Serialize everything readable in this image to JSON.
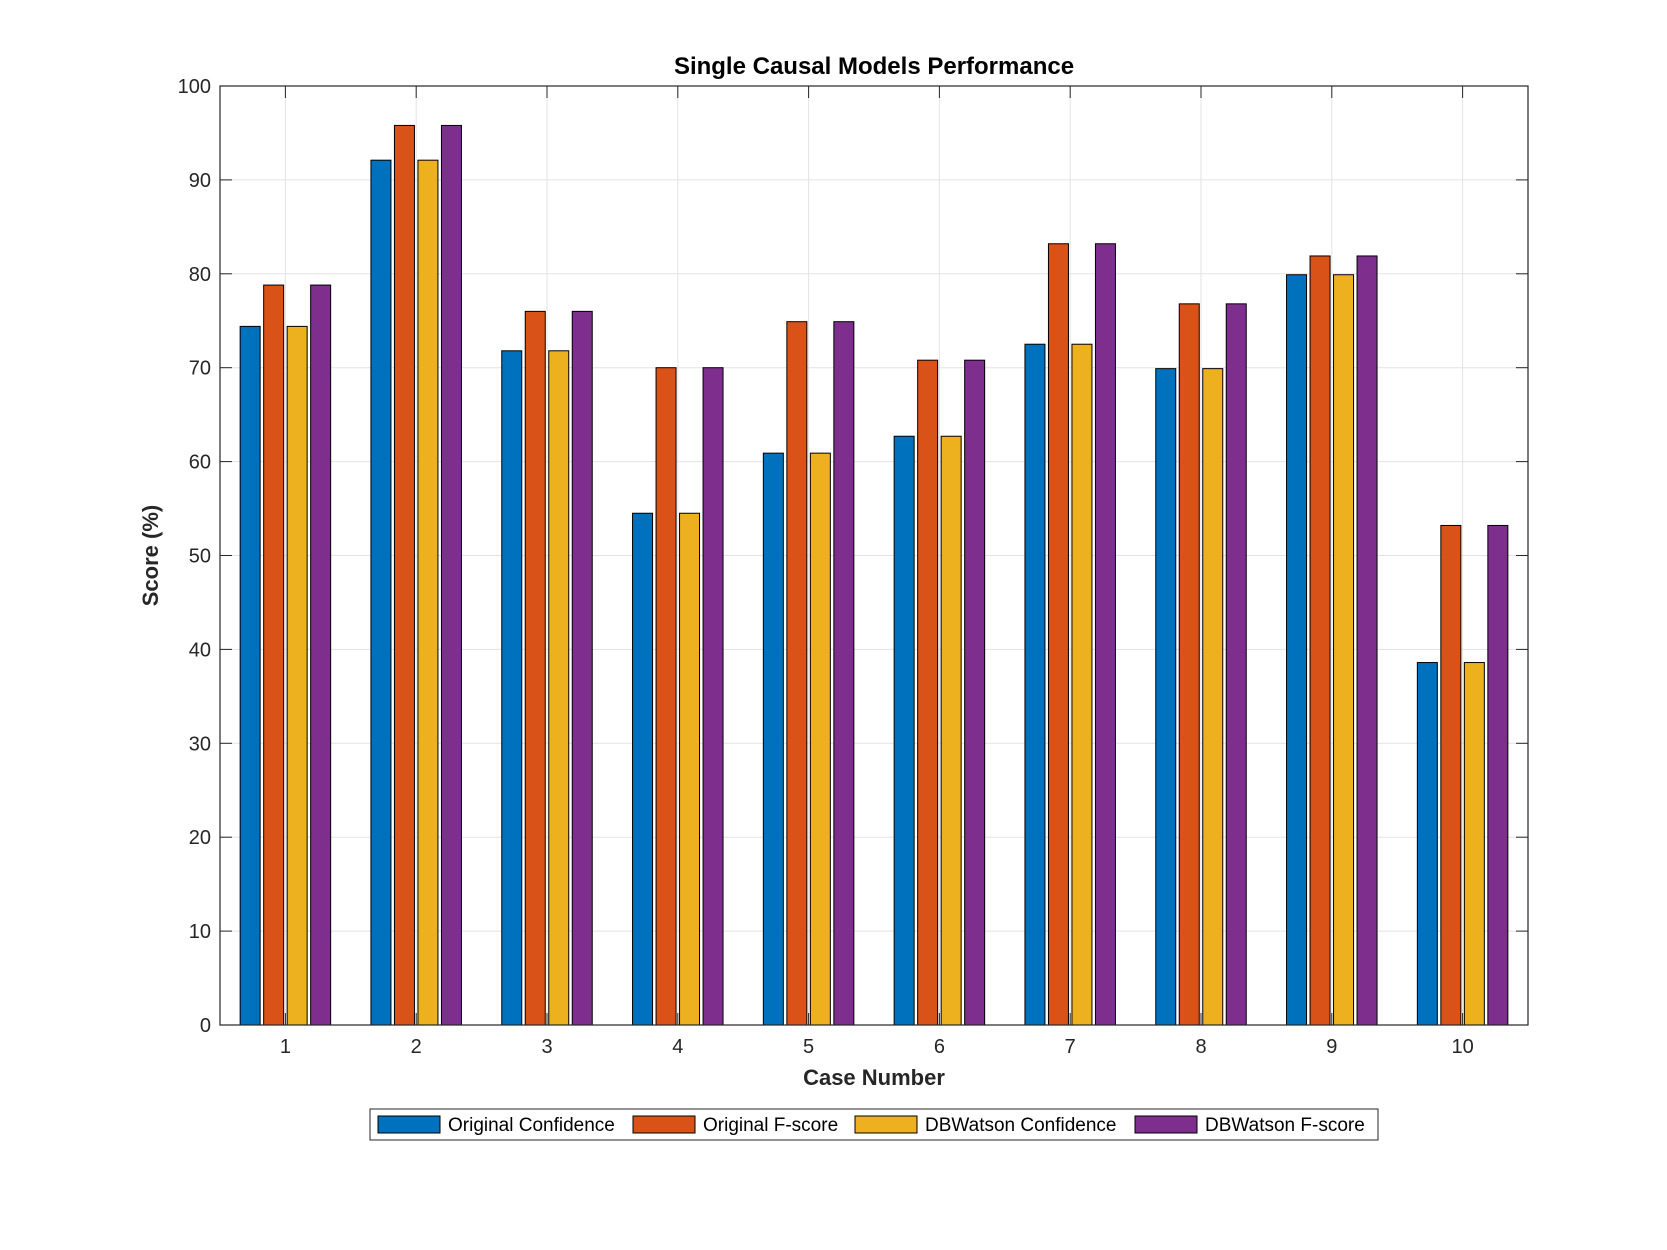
{
  "chart_data": {
    "type": "bar",
    "title": "Single Causal Models Performance",
    "xlabel": "Case Number",
    "ylabel": "Score (%)",
    "ylim": [
      0,
      100
    ],
    "yticks": [
      0,
      10,
      20,
      30,
      40,
      50,
      60,
      70,
      80,
      90,
      100
    ],
    "grid": true,
    "legend_position": "bottom-center",
    "categories": [
      "1",
      "2",
      "3",
      "4",
      "5",
      "6",
      "7",
      "8",
      "9",
      "10"
    ],
    "series": [
      {
        "name": "Original Confidence",
        "color": "#0072BD",
        "values": [
          74.4,
          92.1,
          71.8,
          54.5,
          60.9,
          62.7,
          72.5,
          69.9,
          79.9,
          38.6
        ]
      },
      {
        "name": "Original F-score",
        "color": "#D95319",
        "values": [
          78.8,
          95.8,
          76.0,
          70.0,
          74.9,
          70.8,
          83.2,
          76.8,
          81.9,
          53.2
        ]
      },
      {
        "name": "DBWatson Confidence",
        "color": "#EDB120",
        "values": [
          74.4,
          92.1,
          71.8,
          54.5,
          60.9,
          62.7,
          72.5,
          69.9,
          79.9,
          38.6
        ]
      },
      {
        "name": "DBWatson F-score",
        "color": "#7E2F8E",
        "values": [
          78.8,
          95.8,
          76.0,
          70.0,
          74.9,
          70.8,
          83.2,
          76.8,
          81.9,
          53.2
        ]
      }
    ]
  }
}
